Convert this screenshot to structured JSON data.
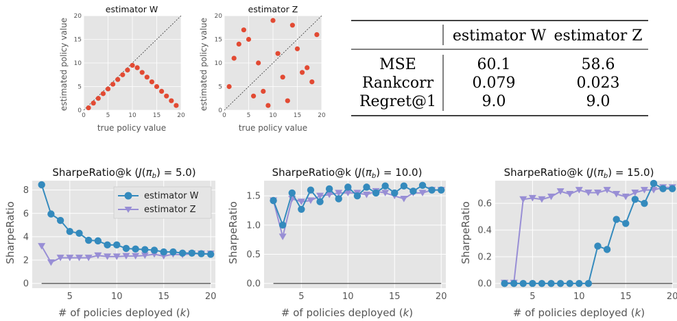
{
  "colors": {
    "estimator_w": "#348abd",
    "estimator_z": "#988ed5",
    "scatter": "#e24a33",
    "panel_bg": "#e5e5e5",
    "grid": "#ffffff",
    "baseline": "#222222"
  },
  "chart_data": [
    {
      "type": "scatter",
      "title": "estimator W",
      "xlabel": "true policy value",
      "ylabel": "estimated policy value",
      "xlim": [
        0,
        20
      ],
      "ylim": [
        0,
        20
      ],
      "xticks": [
        "0",
        "5",
        "10",
        "15",
        "20"
      ],
      "yticks": [
        "0",
        "5",
        "10",
        "15",
        "20"
      ],
      "diagonal": true,
      "x": [
        1,
        2,
        3,
        4,
        5,
        6,
        7,
        8,
        9,
        10,
        11,
        12,
        13,
        14,
        15,
        16,
        17,
        18,
        19
      ],
      "y": [
        0.5,
        1.5,
        2.5,
        3.5,
        4.5,
        5.5,
        6.5,
        7.5,
        8.5,
        9.5,
        9,
        8,
        7,
        6,
        5,
        4,
        3,
        2,
        1
      ]
    },
    {
      "type": "scatter",
      "title": "estimator Z",
      "xlabel": "true policy value",
      "ylabel": "estimated policy value",
      "xlim": [
        0,
        20
      ],
      "ylim": [
        0,
        20
      ],
      "xticks": [
        "0",
        "5",
        "10",
        "15",
        "20"
      ],
      "yticks": [
        "0",
        "5",
        "10",
        "15",
        "20"
      ],
      "diagonal": true,
      "x": [
        1,
        2,
        3,
        4,
        5,
        6,
        7,
        8,
        9,
        10,
        11,
        12,
        13,
        14,
        15,
        16,
        17,
        18,
        19
      ],
      "y": [
        5,
        11,
        14,
        17,
        15,
        3,
        10,
        4,
        1,
        19,
        12,
        7,
        2,
        18,
        13,
        8,
        9,
        6,
        16
      ]
    },
    {
      "type": "table",
      "columns": [
        "",
        "estimator W",
        "estimator Z"
      ],
      "rows": [
        [
          "MSE",
          "60.1",
          "58.6"
        ],
        [
          "Rankcorr",
          "0.079",
          "0.023"
        ],
        [
          "Regret@1",
          "9.0",
          "9.0"
        ]
      ]
    },
    {
      "type": "line",
      "title": "SharpeRatio@k (J(π_b) = 5.0)",
      "title_main": "SharpeRatio@k (",
      "title_tail": ") = 5.0)",
      "xlabel": "# of policies deployed (k)",
      "ylabel": "SharpeRatio",
      "xlim": [
        1,
        20.5
      ],
      "ylim": [
        -0.4,
        8.8
      ],
      "xticks": [
        5,
        10,
        15,
        20
      ],
      "yticks": [
        0,
        2,
        4,
        6,
        8
      ],
      "x": [
        2,
        3,
        4,
        5,
        6,
        7,
        8,
        9,
        10,
        11,
        12,
        13,
        14,
        15,
        16,
        17,
        18,
        19,
        20
      ],
      "series": [
        {
          "name": "estimator W",
          "values": [
            8.45,
            5.95,
            5.4,
            4.45,
            4.3,
            3.7,
            3.65,
            3.3,
            3.3,
            3.0,
            2.95,
            2.9,
            2.85,
            2.7,
            2.7,
            2.6,
            2.6,
            2.55,
            2.5
          ]
        },
        {
          "name": "estimator Z",
          "values": [
            3.2,
            1.8,
            2.2,
            2.2,
            2.2,
            2.2,
            2.4,
            2.3,
            2.3,
            2.35,
            2.35,
            2.4,
            2.5,
            2.35,
            2.5,
            2.45,
            2.55,
            2.55,
            2.55
          ]
        }
      ],
      "legend": "top-right"
    },
    {
      "type": "line",
      "title": "SharpeRatio@k (J(π_b) = 10.0)",
      "title_main": "SharpeRatio@k (",
      "title_tail": ") = 10.0)",
      "xlabel": "# of policies deployed (k)",
      "ylabel": "SharpeRatio",
      "xlim": [
        1,
        20.5
      ],
      "ylim": [
        -0.08,
        1.76
      ],
      "xticks": [
        5,
        10,
        15,
        20
      ],
      "yticks": [
        0.0,
        0.5,
        1.0,
        1.5
      ],
      "ytick_labels": [
        "0.0",
        "0.5",
        "1.0",
        "1.5"
      ],
      "x": [
        2,
        3,
        4,
        5,
        6,
        7,
        8,
        9,
        10,
        11,
        12,
        13,
        14,
        15,
        16,
        17,
        18,
        19,
        20
      ],
      "series": [
        {
          "name": "estimator W",
          "values": [
            1.42,
            1.0,
            1.55,
            1.27,
            1.6,
            1.4,
            1.62,
            1.45,
            1.65,
            1.5,
            1.65,
            1.55,
            1.67,
            1.55,
            1.67,
            1.58,
            1.68,
            1.6,
            1.6
          ]
        },
        {
          "name": "estimator Z",
          "values": [
            1.42,
            0.8,
            1.45,
            1.4,
            1.42,
            1.5,
            1.52,
            1.55,
            1.55,
            1.55,
            1.52,
            1.58,
            1.55,
            1.5,
            1.45,
            1.55,
            1.55,
            1.6,
            1.6
          ]
        }
      ]
    },
    {
      "type": "line",
      "title": "SharpeRatio@k (J(π_b) = 15.0)",
      "title_main": "SharpeRatio@k (",
      "title_tail": ") = 15.0)",
      "xlabel": "# of policies deployed (k)",
      "ylabel": "SharpeRatio",
      "xlim": [
        1,
        20.5
      ],
      "ylim": [
        -0.035,
        0.77
      ],
      "xticks": [
        5,
        10,
        15,
        20
      ],
      "yticks": [
        0.0,
        0.2,
        0.4,
        0.6
      ],
      "ytick_labels": [
        "0.0",
        "0.2",
        "0.4",
        "0.6"
      ],
      "x": [
        2,
        3,
        4,
        5,
        6,
        7,
        8,
        9,
        10,
        11,
        12,
        13,
        14,
        15,
        16,
        17,
        18,
        19,
        20
      ],
      "series": [
        {
          "name": "estimator W",
          "values": [
            0,
            0,
            0,
            0,
            0,
            0,
            0,
            0,
            0,
            0,
            0.28,
            0.255,
            0.48,
            0.45,
            0.63,
            0.6,
            0.75,
            0.71,
            0.71
          ]
        },
        {
          "name": "estimator Z",
          "values": [
            0.005,
            0.005,
            0.63,
            0.64,
            0.63,
            0.65,
            0.69,
            0.67,
            0.7,
            0.68,
            0.68,
            0.7,
            0.67,
            0.65,
            0.68,
            0.7,
            0.7,
            0.72,
            0.72
          ]
        }
      ]
    }
  ]
}
